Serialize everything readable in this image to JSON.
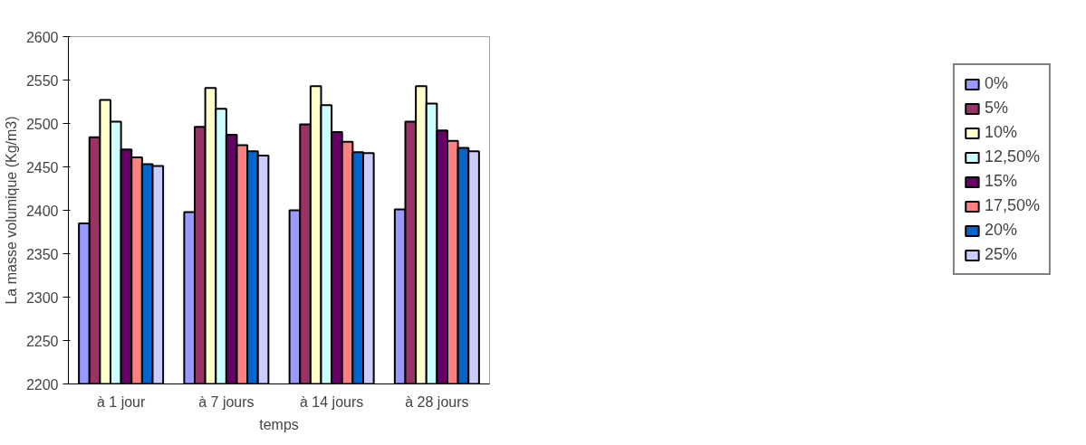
{
  "chart_data": {
    "type": "bar",
    "xlabel": "temps",
    "ylabel": "La masse volumique (Kg/m3)",
    "categories": [
      "à 1 jour",
      "à 7 jours",
      "à 14 jours",
      "à 28 jours"
    ],
    "series": [
      {
        "name": "0%",
        "color": "#9999ff",
        "values": [
          2385,
          2398,
          2400,
          2401
        ]
      },
      {
        "name": "5%",
        "color": "#993366",
        "values": [
          2484,
          2496,
          2499,
          2502
        ]
      },
      {
        "name": "10%",
        "color": "#ffffcc",
        "values": [
          2527,
          2541,
          2543,
          2543
        ]
      },
      {
        "name": "12,50%",
        "color": "#ccffff",
        "values": [
          2502,
          2517,
          2521,
          2523
        ]
      },
      {
        "name": "15%",
        "color": "#660066",
        "values": [
          2470,
          2487,
          2490,
          2492
        ]
      },
      {
        "name": "17,50%",
        "color": "#ff8080",
        "values": [
          2461,
          2475,
          2479,
          2480
        ]
      },
      {
        "name": "20%",
        "color": "#0066cc",
        "values": [
          2453,
          2468,
          2467,
          2472
        ]
      },
      {
        "name": "25%",
        "color": "#ccccff",
        "values": [
          2451,
          2463,
          2466,
          2468
        ]
      }
    ],
    "ylim": [
      2200,
      2600
    ],
    "yticks": [
      2200,
      2250,
      2300,
      2350,
      2400,
      2450,
      2500,
      2550,
      2600
    ],
    "grid": false,
    "legend": "right"
  }
}
